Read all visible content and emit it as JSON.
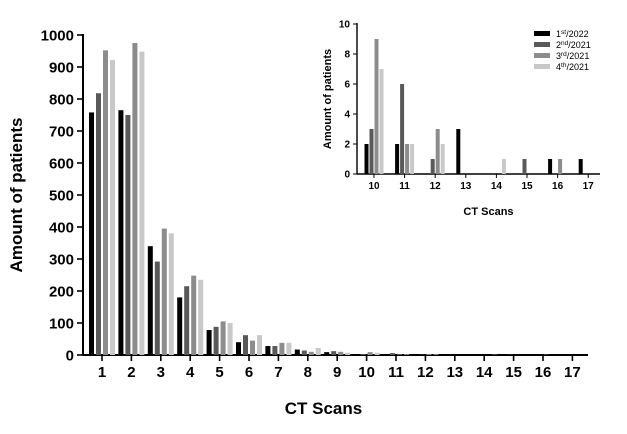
{
  "colors": {
    "series": [
      "#000000",
      "#595959",
      "#8c8c8c",
      "#c8c8c8"
    ],
    "axis": "#000000"
  },
  "chart_data": [
    {
      "type": "bar",
      "xlabel": "CT Scans",
      "ylabel": "Amount of patients",
      "ylim": [
        0,
        1000
      ],
      "yticks": [
        "0",
        "100",
        "200",
        "300",
        "400",
        "500",
        "600",
        "700",
        "800",
        "900",
        "1000"
      ],
      "categories": [
        "1",
        "2",
        "3",
        "4",
        "5",
        "6",
        "7",
        "8",
        "9",
        "10",
        "11",
        "12",
        "13",
        "14",
        "15",
        "16",
        "17"
      ],
      "grid": false,
      "series": [
        {
          "name_base": "1",
          "name_sup": "st",
          "name_rest": "/2022",
          "values": [
            758,
            765,
            340,
            180,
            78,
            40,
            28,
            17,
            9,
            2,
            2,
            0,
            3,
            0,
            0,
            1,
            1
          ]
        },
        {
          "name_base": "2",
          "name_sup": "nd",
          "name_rest": "/2021",
          "values": [
            818,
            750,
            292,
            215,
            88,
            62,
            28,
            14,
            12,
            3,
            6,
            1,
            0,
            0,
            1,
            0,
            0
          ]
        },
        {
          "name_base": "3",
          "name_sup": "rd",
          "name_rest": "/2021",
          "values": [
            952,
            975,
            395,
            248,
            105,
            45,
            38,
            10,
            10,
            9,
            2,
            3,
            0,
            0,
            0,
            1,
            0
          ]
        },
        {
          "name_base": "4",
          "name_sup": "th",
          "name_rest": "/2021",
          "values": [
            922,
            948,
            380,
            235,
            100,
            62,
            38,
            22,
            7,
            7,
            2,
            2,
            0,
            1,
            0,
            0,
            0
          ]
        }
      ]
    },
    {
      "type": "bar",
      "xlabel": "CT Scans",
      "ylabel": "Amount of patients",
      "ylim": [
        0,
        10
      ],
      "yticks": [
        "0",
        "2",
        "4",
        "6",
        "8",
        "10"
      ],
      "categories": [
        "10",
        "11",
        "12",
        "13",
        "14",
        "15",
        "16",
        "17"
      ],
      "grid": false,
      "legend": "top-right",
      "series": [
        {
          "values": [
            2,
            2,
            0,
            3,
            0,
            0,
            1,
            1
          ]
        },
        {
          "values": [
            3,
            6,
            1,
            0,
            0,
            1,
            0,
            0
          ]
        },
        {
          "values": [
            9,
            2,
            3,
            0,
            0,
            0,
            1,
            0
          ]
        },
        {
          "values": [
            7,
            2,
            2,
            0,
            1,
            0,
            0,
            0
          ]
        }
      ]
    }
  ]
}
